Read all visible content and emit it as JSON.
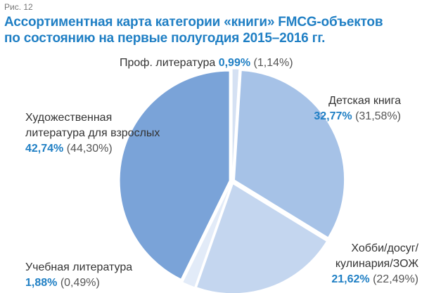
{
  "figure_label": "Рис. 12",
  "title_line1": "Ассортиментная карта категории «книги» FMCG-объектов",
  "title_line2": "по состоянию на первые полугодия 2015–2016 гг.",
  "colors": {
    "accent": "#1f7fc4",
    "slices": [
      "#d5e1f3",
      "#a6c2e7",
      "#c4d6ef",
      "#e2ebf8",
      "#7aa3d8"
    ]
  },
  "chart_data": {
    "type": "pie",
    "title": "Ассортиментная карта категории «книги» FMCG-объектов по состоянию на первые полугодия 2015–2016 гг.",
    "slices": [
      {
        "label": "Проф. литература",
        "value": 0.99,
        "previous": 1.14,
        "value_text": "0,99%",
        "previous_text": "(1,14%)"
      },
      {
        "label": "Детская книга",
        "value": 32.77,
        "previous": 31.58,
        "value_text": "32,77%",
        "previous_text": "(31,58%)"
      },
      {
        "label": "Хобби/досуг/кулинария/ЗОЖ",
        "label_line1": "Хобби/досуг/",
        "label_line2": "кулинария/ЗОЖ",
        "value": 21.62,
        "previous": 22.49,
        "value_text": "21,62%",
        "previous_text": "(22,49%)"
      },
      {
        "label": "Учебная литература",
        "value": 1.88,
        "previous": 0.49,
        "value_text": "1,88%",
        "previous_text": "(0,49%)"
      },
      {
        "label": "Художественная литература для взрослых",
        "label_line1": "Художественная",
        "label_line2": "литература для взрослых",
        "value": 42.74,
        "previous": 44.3,
        "value_text": "42,74%",
        "previous_text": "(44,30%)"
      }
    ]
  }
}
